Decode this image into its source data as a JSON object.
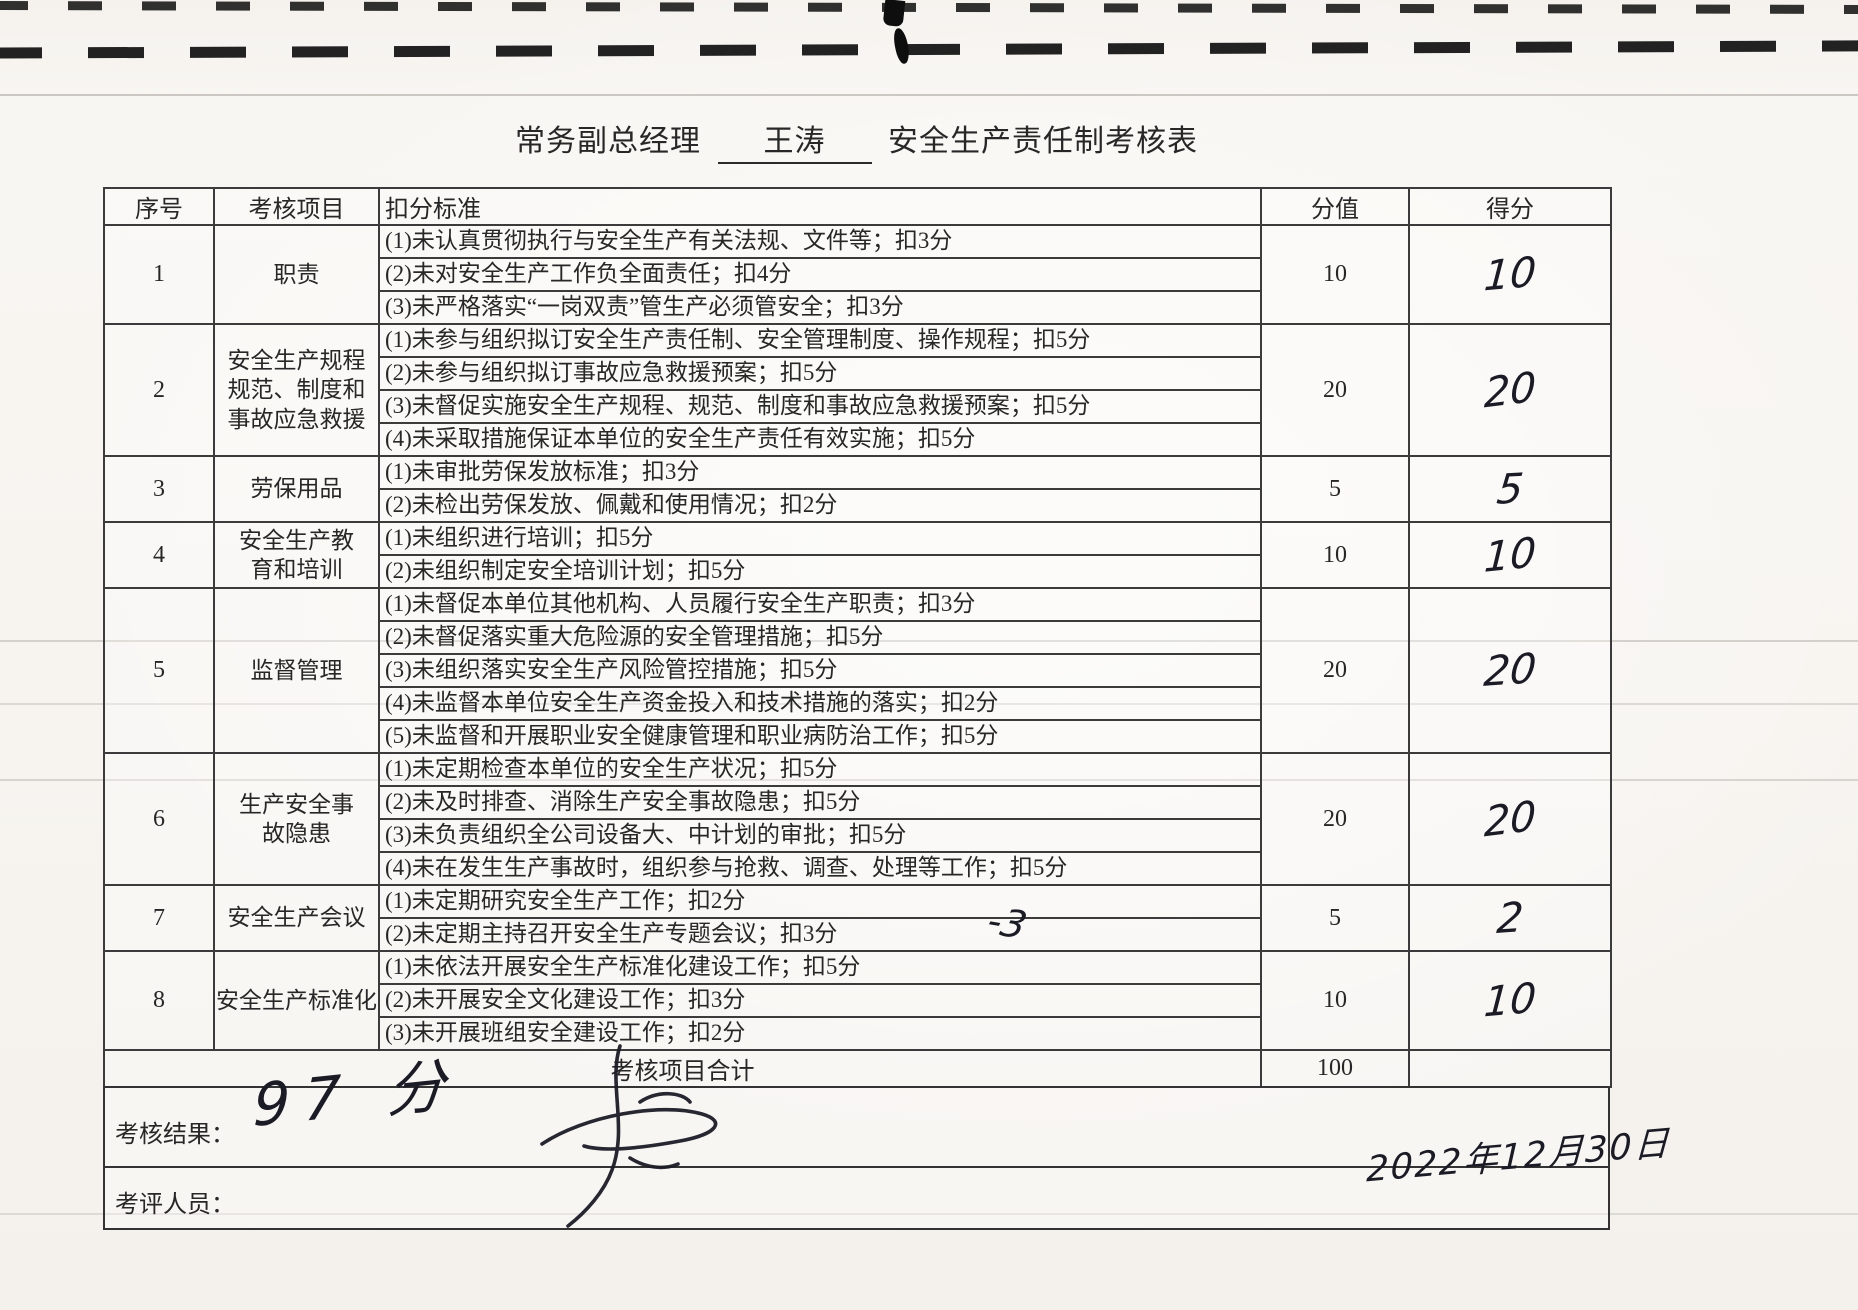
{
  "title": {
    "prefix": "常务副总经理",
    "name": "王涛",
    "suffix": "安全生产责任制考核表"
  },
  "table": {
    "headers": {
      "no": "序号",
      "item": "考核项目",
      "criteria": "扣分标准",
      "value": "分值",
      "score": "得分"
    },
    "rows": [
      {
        "no": "1",
        "item": "职责",
        "value": "10",
        "score": "10",
        "criteria": [
          "(1)未认真贯彻执行与安全生产有关法规、文件等；扣3分",
          "(2)未对安全生产工作负全面责任；扣4分",
          "(3)未严格落实“一岗双责”管生产必须管安全；扣3分"
        ]
      },
      {
        "no": "2",
        "item": "安全生产规程\n规范、制度和\n事故应急救援",
        "value": "20",
        "score": "20",
        "criteria": [
          "(1)未参与组织拟订安全生产责任制、安全管理制度、操作规程；扣5分",
          "(2)未参与组织拟订事故应急救援预案；扣5分",
          "(3)未督促实施安全生产规程、规范、制度和事故应急救援预案；扣5分",
          "(4)未采取措施保证本单位的安全生产责任有效实施；扣5分"
        ]
      },
      {
        "no": "3",
        "item": "劳保用品",
        "value": "5",
        "score": "5",
        "criteria": [
          "(1)未审批劳保发放标准；扣3分",
          "(2)未检出劳保发放、佩戴和使用情况；扣2分"
        ]
      },
      {
        "no": "4",
        "item": "安全生产教\n育和培训",
        "value": "10",
        "score": "10",
        "criteria": [
          "(1)未组织进行培训；扣5分",
          "(2)未组织制定安全培训计划；扣5分"
        ]
      },
      {
        "no": "5",
        "item": "监督管理",
        "value": "20",
        "score": "20",
        "criteria": [
          "(1)未督促本单位其他机构、人员履行安全生产职责；扣3分",
          "(2)未督促落实重大危险源的安全管理措施；扣5分",
          "(3)未组织落实安全生产风险管控措施；扣5分",
          "(4)未监督本单位安全生产资金投入和技术措施的落实；扣2分",
          "(5)未监督和开展职业安全健康管理和职业病防治工作；扣5分"
        ]
      },
      {
        "no": "6",
        "item": "生产安全事\n故隐患",
        "value": "20",
        "score": "20",
        "criteria": [
          "(1)未定期检查本单位的安全生产状况；扣5分",
          "(2)未及时排查、消除生产安全事故隐患；扣5分",
          "(3)未负责组织全公司设备大、中计划的审批；扣5分",
          "(4)未在发生生产事故时，组织参与抢救、调查、处理等工作；扣5分"
        ]
      },
      {
        "no": "7",
        "item": "安全生产会议",
        "value": "5",
        "score": "2",
        "annotation": "-3",
        "criteria": [
          "(1)未定期研究安全生产工作；扣2分",
          "(2)未定期主持召开安全生产专题会议；扣3分"
        ]
      },
      {
        "no": "8",
        "item": "安全生产标准化",
        "value": "10",
        "score": "10",
        "criteria": [
          "(1)未依法开展安全生产标准化建设工作；扣5分",
          "(2)未开展安全文化建设工作；扣3分",
          "(3)未开展班组安全建设工作；扣2分"
        ]
      }
    ],
    "total": {
      "label": "考核项目合计",
      "value": "100",
      "score": ""
    }
  },
  "footer": {
    "result_label": "考核结果：",
    "result_value": "97 分",
    "assessor_label": "考评人员：",
    "date": "2022年12月30日"
  }
}
